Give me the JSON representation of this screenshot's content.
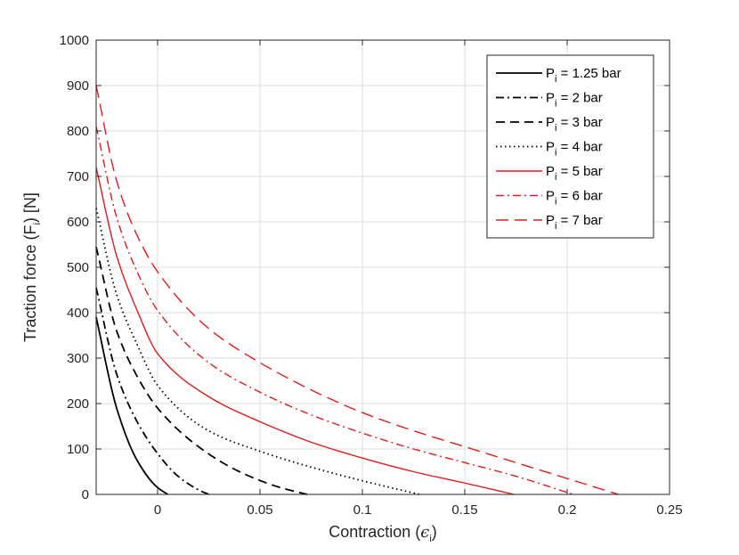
{
  "chart_data": {
    "type": "line",
    "xlabel": {
      "main": "Contraction (",
      "symbol": "ϵ",
      "sub": "i",
      "end": ")"
    },
    "ylabel": {
      "main": "Traction force (F",
      "sub": "i",
      "end": ") [N]"
    },
    "xlim": [
      -0.03,
      0.25
    ],
    "ylim": [
      0,
      1000
    ],
    "xticks": [
      0,
      0.05,
      0.1,
      0.15,
      0.2,
      0.25
    ],
    "xtick_labels": [
      "0",
      "0.05",
      "0.1",
      "0.15",
      "0.2",
      "0.25"
    ],
    "yticks": [
      0,
      100,
      200,
      300,
      400,
      500,
      600,
      700,
      800,
      900,
      1000
    ],
    "ytick_labels": [
      "0",
      "100",
      "200",
      "300",
      "400",
      "500",
      "600",
      "700",
      "800",
      "900",
      "1000"
    ],
    "grid": true,
    "legend_position": "top-right",
    "series": [
      {
        "name": "1.25 bar",
        "color": "#000000",
        "dash": "solid",
        "x": [
          -0.03,
          -0.02,
          -0.01,
          0.0,
          0.005
        ],
        "y": [
          390,
          190,
          75,
          15,
          0
        ]
      },
      {
        "name": "2 bar",
        "color": "#000000",
        "dash": "dashdot",
        "x": [
          -0.03,
          -0.02,
          -0.01,
          0.0,
          0.01,
          0.02,
          0.025
        ],
        "y": [
          455,
          265,
          160,
          90,
          40,
          10,
          0
        ]
      },
      {
        "name": "3 bar",
        "color": "#000000",
        "dash": "dashed",
        "x": [
          -0.03,
          -0.02,
          -0.01,
          0.0,
          0.02,
          0.04,
          0.06,
          0.073
        ],
        "y": [
          545,
          360,
          260,
          190,
          105,
          50,
          15,
          0
        ]
      },
      {
        "name": "4 bar",
        "color": "#000000",
        "dash": "dotted",
        "x": [
          -0.03,
          -0.02,
          -0.01,
          0.0,
          0.025,
          0.05,
          0.075,
          0.1,
          0.128
        ],
        "y": [
          630,
          440,
          330,
          240,
          140,
          95,
          60,
          30,
          0
        ]
      },
      {
        "name": "5 bar",
        "color": "#e41a1c",
        "dash": "solid",
        "x": [
          -0.03,
          -0.02,
          -0.01,
          0.0,
          0.025,
          0.05,
          0.075,
          0.1,
          0.125,
          0.15,
          0.174
        ],
        "y": [
          720,
          525,
          405,
          310,
          215,
          160,
          115,
          80,
          50,
          25,
          0
        ]
      },
      {
        "name": "6 bar",
        "color": "#e41a1c",
        "dash": "dashdot",
        "x": [
          -0.03,
          -0.02,
          -0.01,
          0.0,
          0.025,
          0.05,
          0.075,
          0.1,
          0.125,
          0.15,
          0.175,
          0.203
        ],
        "y": [
          810,
          610,
          490,
          405,
          290,
          225,
          175,
          135,
          100,
          70,
          40,
          0
        ]
      },
      {
        "name": "7 bar",
        "color": "#e41a1c",
        "dash": "longdash",
        "x": [
          -0.03,
          -0.02,
          -0.01,
          0.0,
          0.025,
          0.05,
          0.075,
          0.1,
          0.125,
          0.15,
          0.175,
          0.2,
          0.225
        ],
        "y": [
          900,
          690,
          570,
          490,
          365,
          290,
          230,
          180,
          140,
          105,
          70,
          35,
          0
        ]
      }
    ],
    "legend_prefix": "P",
    "legend_sub": "i",
    "legend_eq": " = "
  }
}
